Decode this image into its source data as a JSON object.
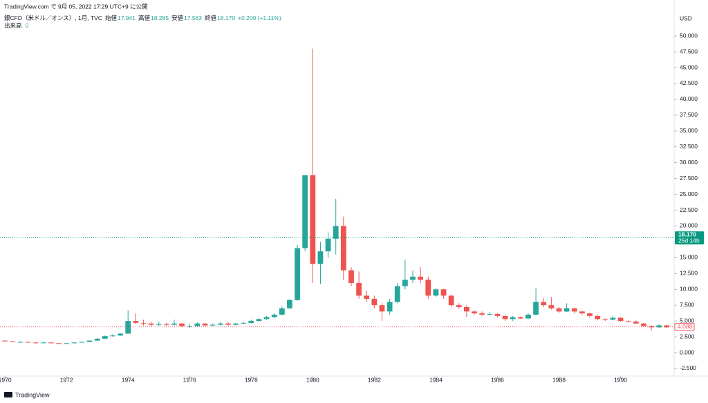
{
  "chart_data": {
    "type": "candlestick",
    "published": "TradingView.com で 9月 05, 2022 17:29 UTC+9 に公開",
    "symbol": "銀CFD（米ドル／オンス）, 1月, TVC",
    "legend": [
      {
        "label": "始値",
        "value": "17.941"
      },
      {
        "label": "高値",
        "value": "18.285"
      },
      {
        "label": "安値",
        "value": "17.563"
      },
      {
        "label": "終値",
        "value": "18.170"
      }
    ],
    "change": "+0.200 (+1.11%)",
    "volume_label": "出来高",
    "volume_value": "0",
    "currency": "USD",
    "logo": "TradingView",
    "up_color": "#26a69a",
    "down_color": "#ef5350",
    "x": [
      1970,
      1970.25,
      1970.5,
      1970.75,
      1971,
      1971.25,
      1971.5,
      1971.75,
      1972,
      1972.25,
      1972.5,
      1972.75,
      1973,
      1973.25,
      1973.5,
      1973.75,
      1974,
      1974.25,
      1974.5,
      1974.75,
      1975,
      1975.25,
      1975.5,
      1975.75,
      1976,
      1976.25,
      1976.5,
      1976.75,
      1977,
      1977.25,
      1977.5,
      1977.75,
      1978,
      1978.25,
      1978.5,
      1978.75,
      1979,
      1979.25,
      1979.5,
      1979.75,
      1980,
      1980.25,
      1980.5,
      1980.75,
      1981,
      1981.25,
      1981.5,
      1981.75,
      1982,
      1982.25,
      1982.5,
      1982.75,
      1983,
      1983.25,
      1983.5,
      1983.75,
      1984,
      1984.25,
      1984.5,
      1984.75,
      1985,
      1985.25,
      1985.5,
      1985.75,
      1986,
      1986.25,
      1986.5,
      1986.75,
      1987,
      1987.25,
      1987.5,
      1987.75,
      1988,
      1988.25,
      1988.5,
      1988.75,
      1989,
      1989.25,
      1989.5,
      1989.75,
      1990,
      1990.25,
      1990.5,
      1990.75,
      1991,
      1991.25,
      1991.5
    ],
    "open": [
      1.9,
      1.8,
      1.7,
      1.7,
      1.6,
      1.5,
      1.6,
      1.5,
      1.4,
      1.5,
      1.6,
      1.7,
      1.9,
      2.2,
      2.6,
      2.7,
      3.0,
      5.0,
      4.7,
      4.6,
      4.4,
      4.5,
      4.4,
      4.6,
      4.2,
      4.2,
      4.6,
      4.3,
      4.4,
      4.6,
      4.4,
      4.6,
      4.7,
      5.0,
      5.3,
      5.6,
      6.0,
      7.0,
      8.3,
      16.5,
      28.0,
      14.0,
      16.0,
      18.0,
      20.0,
      13.0,
      11.0,
      9.0,
      8.5,
      7.5,
      6.5,
      8.0,
      10.5,
      11.5,
      12.0,
      11.5,
      9.0,
      10.0,
      9.0,
      7.5,
      7.2,
      6.5,
      6.2,
      6.0,
      6.1,
      5.8,
      5.3,
      5.6,
      5.4,
      6.0,
      8.0,
      7.5,
      7.0,
      6.5,
      7.0,
      6.5,
      6.2,
      5.8,
      5.3,
      5.2,
      5.5,
      5.0,
      4.9,
      4.6,
      4.2,
      4.0,
      4.3
    ],
    "high": [
      1.95,
      1.85,
      1.8,
      1.75,
      1.65,
      1.7,
      1.65,
      1.55,
      1.55,
      1.65,
      1.75,
      1.95,
      2.3,
      2.7,
      2.9,
      3.1,
      6.7,
      6.2,
      5.2,
      4.9,
      4.9,
      4.7,
      5.2,
      4.7,
      4.5,
      4.8,
      4.7,
      4.6,
      4.9,
      4.8,
      4.7,
      4.9,
      5.2,
      5.5,
      5.8,
      6.2,
      7.3,
      8.5,
      17.0,
      28.0,
      48.0,
      17.5,
      19.0,
      24.3,
      21.5,
      13.5,
      12.8,
      9.8,
      9.0,
      7.8,
      8.5,
      11.0,
      14.7,
      13.0,
      13.5,
      12.0,
      10.2,
      10.1,
      9.2,
      7.8,
      7.5,
      6.7,
      6.5,
      6.4,
      6.2,
      5.9,
      5.8,
      5.7,
      6.2,
      10.2,
      8.6,
      8.8,
      7.2,
      7.8,
      7.1,
      6.6,
      6.3,
      5.9,
      5.4,
      5.8,
      5.6,
      5.2,
      5.1,
      4.7,
      4.3,
      4.5,
      4.4
    ],
    "low": [
      1.75,
      1.65,
      1.65,
      1.55,
      1.45,
      1.5,
      1.45,
      1.35,
      1.35,
      1.45,
      1.55,
      1.65,
      1.85,
      2.15,
      2.5,
      2.6,
      3.0,
      4.5,
      4.3,
      4.1,
      4.2,
      4.2,
      4.3,
      4.0,
      3.9,
      4.1,
      4.2,
      4.2,
      4.3,
      4.3,
      4.3,
      4.5,
      4.6,
      4.9,
      5.2,
      5.5,
      5.9,
      6.9,
      8.2,
      16.0,
      11.0,
      10.8,
      15.0,
      15.5,
      11.5,
      10.5,
      8.5,
      8.0,
      7.0,
      5.0,
      6.0,
      7.8,
      10.0,
      11.0,
      11.0,
      8.5,
      8.8,
      8.5,
      7.2,
      6.9,
      5.6,
      6.0,
      5.8,
      5.9,
      5.6,
      5.0,
      5.0,
      5.3,
      5.3,
      5.9,
      7.2,
      6.8,
      6.3,
      6.4,
      6.2,
      6.0,
      5.6,
      5.1,
      5.0,
      5.1,
      4.9,
      4.8,
      4.5,
      4.1,
      3.5,
      3.9,
      3.9
    ],
    "close": [
      1.8,
      1.7,
      1.7,
      1.6,
      1.5,
      1.6,
      1.5,
      1.4,
      1.5,
      1.6,
      1.7,
      1.9,
      2.2,
      2.6,
      2.7,
      3.0,
      5.0,
      4.7,
      4.6,
      4.4,
      4.5,
      4.4,
      4.6,
      4.2,
      4.2,
      4.6,
      4.3,
      4.4,
      4.6,
      4.4,
      4.6,
      4.7,
      5.0,
      5.3,
      5.6,
      6.0,
      7.0,
      8.3,
      16.5,
      28.0,
      14.0,
      16.0,
      18.0,
      20.0,
      13.0,
      11.0,
      9.0,
      8.5,
      7.5,
      6.5,
      8.0,
      10.5,
      11.5,
      12.0,
      11.5,
      9.0,
      10.0,
      9.0,
      7.5,
      7.2,
      6.5,
      6.2,
      6.0,
      6.1,
      5.8,
      5.3,
      5.6,
      5.4,
      6.0,
      8.0,
      7.5,
      7.0,
      6.5,
      7.0,
      6.5,
      6.2,
      5.8,
      5.3,
      5.2,
      5.5,
      5.0,
      4.9,
      4.6,
      4.2,
      4.0,
      4.3,
      4.0
    ],
    "xlim": [
      1969.84,
      1991.74
    ],
    "xticks": [
      1970,
      1972,
      1974,
      1976,
      1978,
      1980,
      1982,
      1984,
      1986,
      1988,
      1990
    ],
    "ylim": [
      -3.7,
      53.5
    ],
    "yticks": [
      {
        "value": 50,
        "label": "50.000"
      },
      {
        "value": 47.5,
        "label": "47.500"
      },
      {
        "value": 45,
        "label": "45.000"
      },
      {
        "value": 42.5,
        "label": "42.500"
      },
      {
        "value": 40,
        "label": "40.000"
      },
      {
        "value": 37.5,
        "label": "37.500"
      },
      {
        "value": 35,
        "label": "35.000"
      },
      {
        "value": 32.5,
        "label": "32.500"
      },
      {
        "value": 30,
        "label": "30.000"
      },
      {
        "value": 27.5,
        "label": "27.500"
      },
      {
        "value": 25,
        "label": "25.000"
      },
      {
        "value": 22.5,
        "label": "22.500"
      },
      {
        "value": 20,
        "label": "20.000"
      },
      {
        "value": 17.5,
        "label": "17.500"
      },
      {
        "value": 15,
        "label": "15.000"
      },
      {
        "value": 12.5,
        "label": "12.500"
      },
      {
        "value": 10,
        "label": "10.000"
      },
      {
        "value": 7.5,
        "label": "7.500"
      },
      {
        "value": 5,
        "label": "5.000"
      },
      {
        "value": 2.5,
        "label": "2.500"
      },
      {
        "value": 0,
        "label": "0.000"
      },
      {
        "value": -2.5,
        "label": "-2.500"
      }
    ],
    "price_lines": [
      {
        "value": 18.17,
        "label": "18.170",
        "sublabel": "25d 14h",
        "color": "#089981"
      },
      {
        "value": 4.08,
        "label": "4.080",
        "color": "#f7525f"
      }
    ]
  }
}
